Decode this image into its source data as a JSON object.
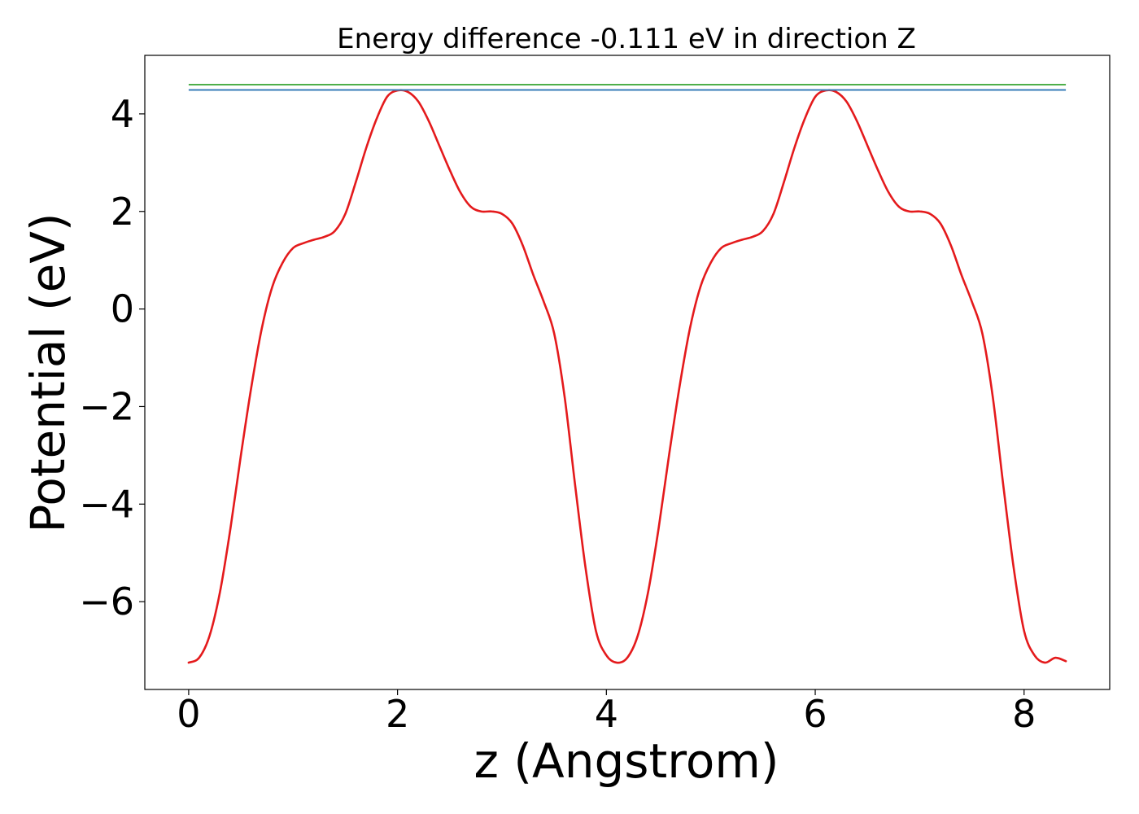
{
  "chart_data": {
    "type": "line",
    "title": "Energy difference -0.111 eV in direction Z",
    "xlabel": "z (Angstrom)",
    "ylabel": "Potential (eV)",
    "xlim": [
      -0.42,
      8.82
    ],
    "ylim": [
      -7.8,
      5.2
    ],
    "grid": false,
    "legend": "none",
    "xticks": [
      0,
      2,
      4,
      6,
      8
    ],
    "yticks": [
      -6,
      -4,
      -2,
      0,
      2,
      4
    ],
    "xtick_labels": [
      "0",
      "2",
      "4",
      "6",
      "8"
    ],
    "ytick_labels": [
      "−6",
      "−4",
      "−2",
      "0",
      "2",
      "4"
    ],
    "series": [
      {
        "color": "#e41a1c",
        "kind": "curve",
        "x": [
          0.0,
          0.1,
          0.2,
          0.3,
          0.4,
          0.5,
          0.6,
          0.7,
          0.8,
          0.9,
          1.0,
          1.1,
          1.2,
          1.3,
          1.4,
          1.5,
          1.6,
          1.7,
          1.8,
          1.9,
          2.0,
          2.1,
          2.2,
          2.3,
          2.4,
          2.5,
          2.6,
          2.7,
          2.8,
          2.9,
          3.0,
          3.1,
          3.2,
          3.3,
          3.4,
          3.5,
          3.6,
          3.7,
          3.8,
          3.9,
          4.0,
          4.1,
          4.2,
          4.3,
          4.4,
          4.5,
          4.6,
          4.7,
          4.8,
          4.9,
          5.0,
          5.1,
          5.2,
          5.3,
          5.4,
          5.5,
          5.6,
          5.7,
          5.8,
          5.9,
          6.0,
          6.1,
          6.2,
          6.3,
          6.4,
          6.5,
          6.6,
          6.7,
          6.8,
          6.9,
          7.0,
          7.1,
          7.2,
          7.3,
          7.4,
          7.5,
          7.6,
          7.7,
          7.8,
          7.9,
          8.0,
          8.1,
          8.2,
          8.3,
          8.4
        ],
        "y": [
          -7.25,
          -7.15,
          -6.7,
          -5.8,
          -4.5,
          -3.0,
          -1.6,
          -0.4,
          0.45,
          0.95,
          1.25,
          1.35,
          1.42,
          1.48,
          1.6,
          1.95,
          2.6,
          3.3,
          3.9,
          4.35,
          4.48,
          4.45,
          4.25,
          3.85,
          3.35,
          2.85,
          2.4,
          2.1,
          2.0,
          2.0,
          1.95,
          1.75,
          1.3,
          0.7,
          0.15,
          -0.5,
          -1.8,
          -3.6,
          -5.3,
          -6.6,
          -7.1,
          -7.25,
          -7.15,
          -6.7,
          -5.8,
          -4.5,
          -3.0,
          -1.6,
          -0.4,
          0.45,
          0.95,
          1.25,
          1.35,
          1.42,
          1.48,
          1.6,
          1.95,
          2.6,
          3.3,
          3.9,
          4.35,
          4.48,
          4.45,
          4.25,
          3.85,
          3.35,
          2.85,
          2.4,
          2.1,
          2.0,
          2.0,
          1.95,
          1.75,
          1.3,
          0.7,
          0.15,
          -0.5,
          -1.8,
          -3.6,
          -5.3,
          -6.6,
          -7.1,
          -7.25,
          -7.15,
          -7.22
        ]
      },
      {
        "color": "#4daf4a",
        "kind": "hline",
        "x": [
          0,
          8.4
        ],
        "y": [
          4.6,
          4.6
        ]
      },
      {
        "color": "#377eb8",
        "kind": "hline",
        "x": [
          0,
          8.4
        ],
        "y": [
          4.49,
          4.49
        ]
      }
    ]
  }
}
